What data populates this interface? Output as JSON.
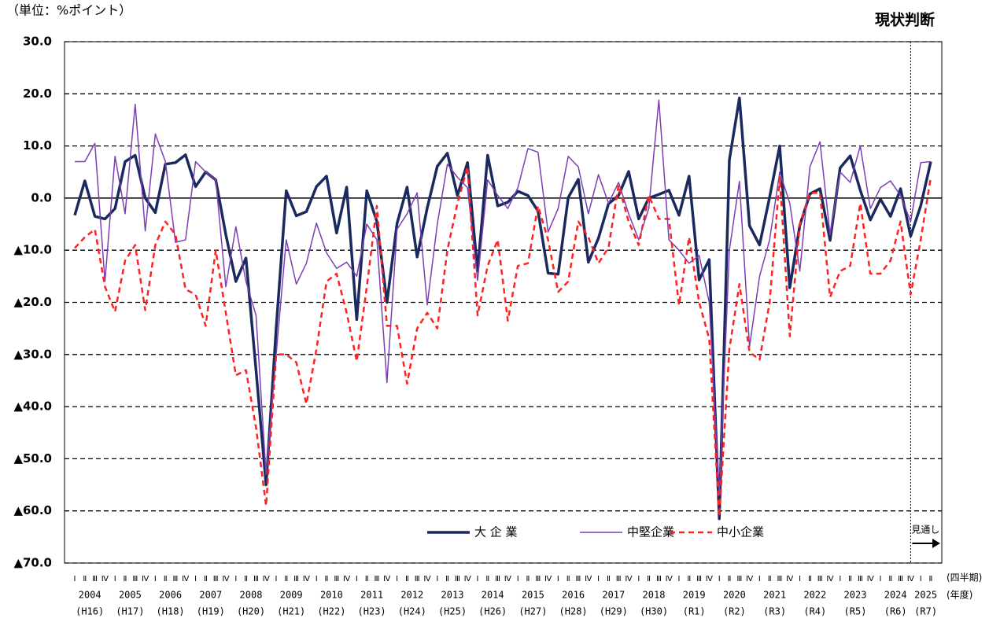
{
  "chart_data": {
    "type": "line",
    "unit_label": "（単位：%ポイント）",
    "title": "現状判断",
    "ylim": [
      -70,
      30
    ],
    "yticks": [
      {
        "value": 30,
        "label": "30.0"
      },
      {
        "value": 20,
        "label": "20.0"
      },
      {
        "value": 10,
        "label": "10.0"
      },
      {
        "value": 0,
        "label": "0.0"
      },
      {
        "value": -10,
        "label": "▲10.0"
      },
      {
        "value": -20,
        "label": "▲20.0"
      },
      {
        "value": -30,
        "label": "▲30.0"
      },
      {
        "value": -40,
        "label": "▲40.0"
      },
      {
        "value": -50,
        "label": "▲50.0"
      },
      {
        "value": -60,
        "label": "▲60.0"
      },
      {
        "value": -70,
        "label": "▲70.0"
      }
    ],
    "grid": true,
    "categories": [
      "Ⅰ",
      "Ⅱ",
      "Ⅲ",
      "Ⅳ",
      "Ⅰ",
      "Ⅱ",
      "Ⅲ",
      "Ⅳ",
      "Ⅰ",
      "Ⅱ",
      "Ⅲ",
      "Ⅳ",
      "Ⅰ",
      "Ⅱ",
      "Ⅲ",
      "Ⅳ",
      "Ⅰ",
      "Ⅱ",
      "Ⅲ",
      "Ⅳ",
      "Ⅰ",
      "Ⅱ",
      "Ⅲ",
      "Ⅳ",
      "Ⅰ",
      "Ⅱ",
      "Ⅲ",
      "Ⅳ",
      "Ⅰ",
      "Ⅱ",
      "Ⅲ",
      "Ⅳ",
      "Ⅰ",
      "Ⅱ",
      "Ⅲ",
      "Ⅳ",
      "Ⅰ",
      "Ⅱ",
      "Ⅲ",
      "Ⅳ",
      "Ⅰ",
      "Ⅱ",
      "Ⅲ",
      "Ⅳ",
      "Ⅰ",
      "Ⅱ",
      "Ⅲ",
      "Ⅳ",
      "Ⅰ",
      "Ⅱ",
      "Ⅲ",
      "Ⅳ",
      "Ⅰ",
      "Ⅱ",
      "Ⅲ",
      "Ⅳ",
      "Ⅰ",
      "Ⅱ",
      "Ⅲ",
      "Ⅳ",
      "Ⅰ",
      "Ⅱ",
      "Ⅲ",
      "Ⅳ",
      "Ⅰ",
      "Ⅱ",
      "Ⅲ",
      "Ⅳ",
      "Ⅰ",
      "Ⅱ",
      "Ⅲ",
      "Ⅳ",
      "Ⅰ",
      "Ⅱ",
      "Ⅲ",
      "Ⅳ",
      "Ⅰ",
      "Ⅱ",
      "Ⅲ",
      "Ⅳ",
      "Ⅰ",
      "Ⅱ",
      "Ⅲ",
      "Ⅳ",
      "Ⅰ",
      "Ⅱ"
    ],
    "quarter_axis_label": "(四半期)",
    "year_axis_label": "(年度)",
    "years": [
      "2004",
      "2005",
      "2006",
      "2007",
      "2008",
      "2009",
      "2010",
      "2011",
      "2012",
      "2013",
      "2014",
      "2015",
      "2016",
      "2017",
      "2018",
      "2019",
      "2020",
      "2021",
      "2022",
      "2023",
      "2024",
      "2025"
    ],
    "eras": [
      "(H16)",
      "(H17)",
      "(H18)",
      "(H19)",
      "(H20)",
      "(H21)",
      "(H22)",
      "(H23)",
      "(H24)",
      "(H25)",
      "(H26)",
      "(H27)",
      "(H28)",
      "(H29)",
      "(H30)",
      "(R1)",
      "(R2)",
      "(R3)",
      "(R4)",
      "(R5)",
      "(R6)",
      "(R7)"
    ],
    "forecast_label": "見通し",
    "series": [
      {
        "name": "大 企 業",
        "color": "#1b2a5e",
        "values": [
          -3.3,
          3.3,
          -3.5,
          -4,
          -2,
          7,
          8.2,
          0,
          -2.8,
          6.5,
          6.8,
          8.3,
          2.2,
          5,
          3.5,
          -7,
          -16,
          -11.5,
          -33,
          -55,
          -25,
          1.4,
          -3.4,
          -2.6,
          2.2,
          4.2,
          -6.7,
          2.1,
          -23.3,
          1.4,
          -4.5,
          -20,
          -4.9,
          2.1,
          -11.3,
          -1.9,
          6.1,
          8.6,
          0.5,
          6.8,
          -14,
          8.2,
          -1.5,
          -0.8,
          1.3,
          0.5,
          -2.5,
          -14.4,
          -14.6,
          0.1,
          3.6,
          -12.3,
          -7.7,
          -1.1,
          0.5,
          5.1,
          -4,
          0,
          0.7,
          1.5,
          -3.3,
          4.2,
          -15.7,
          -11.8,
          -61.5,
          7.3,
          19.2,
          -5.3,
          -9,
          0.2,
          10,
          -17.2,
          -5.2,
          0.8,
          1.8,
          -8.1,
          5.8,
          8.1,
          1.5,
          -4.2,
          -0.2,
          -3.5,
          1.8,
          -7.3,
          -1.5,
          7
        ]
      },
      {
        "name": "中堅企業",
        "color": "#7b3fb3",
        "values": [
          7,
          7,
          10.5,
          -16,
          8,
          -3,
          18,
          -6.3,
          12.3,
          7,
          -8.5,
          -8,
          7,
          5,
          3.5,
          -17,
          -5.5,
          -16,
          -22.5,
          -53,
          -30,
          -8,
          -16.5,
          -12.5,
          -4.8,
          -10.5,
          -13.5,
          -12.3,
          -15,
          -5,
          -8,
          -35.4,
          -6,
          -3,
          1,
          -20.5,
          -5,
          6.5,
          4,
          2,
          -15.8,
          3.5,
          0.5,
          -2,
          2,
          9.5,
          8.8,
          -6.5,
          -2,
          8,
          6,
          -3,
          4.5,
          -1,
          3,
          -3,
          -8,
          -2,
          18.8,
          -8,
          -10,
          -12.5,
          -11,
          -20,
          -57,
          -10,
          3.2,
          -28.5,
          -15,
          -8,
          5,
          -1,
          -14,
          6,
          10.8,
          -7,
          5,
          3,
          10,
          -2,
          2,
          3.3,
          0.5,
          -4.5,
          6.8,
          7
        ]
      },
      {
        "name": "中小企業",
        "color": "#ff2222",
        "values": [
          -9.6,
          -7.5,
          -6,
          -17,
          -21.8,
          -12,
          -9,
          -21.5,
          -9,
          -4.5,
          -7,
          -17.5,
          -18.5,
          -24.5,
          -10,
          -22,
          -34,
          -33,
          -44,
          -59,
          -30,
          -30,
          -31.5,
          -39.5,
          -29,
          -16,
          -14.5,
          -22,
          -31.3,
          -17,
          -1.5,
          -24.5,
          -24.5,
          -35.6,
          -25,
          -22,
          -25,
          -10,
          -1,
          6,
          -22.5,
          -13,
          -8,
          -23.5,
          -13,
          -12.5,
          -1.5,
          -8,
          -18,
          -16,
          -4.5,
          -7.5,
          -12.5,
          -9.5,
          2.5,
          -4.5,
          -9,
          0.5,
          -4,
          -4,
          -20.5,
          -7.5,
          -20,
          -27,
          -61,
          -29,
          -16.5,
          -29.5,
          -31,
          -20,
          4,
          -26.5,
          -5,
          1,
          1,
          -19,
          -14,
          -13,
          -1,
          -14.5,
          -14.5,
          -12,
          -4.5,
          -18.5,
          -8,
          4
        ]
      }
    ]
  }
}
